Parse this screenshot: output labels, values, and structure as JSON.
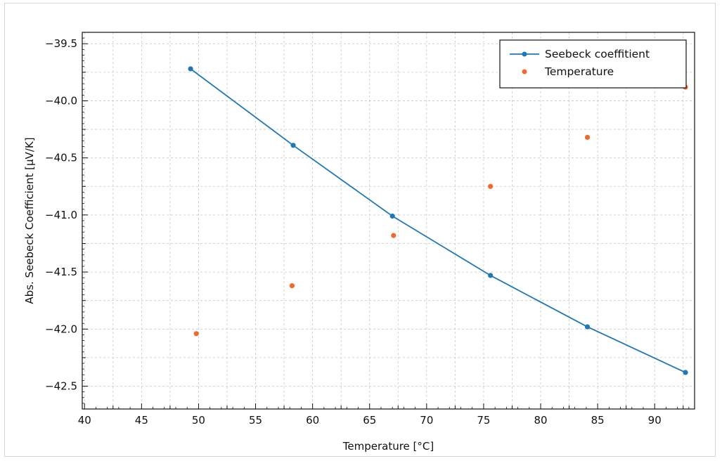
{
  "chart_data": {
    "type": "line",
    "xlabel": "Temperature [°C]",
    "ylabel": "Abs. Seebeck Coefficient [µV/K]",
    "xlim": [
      39.8,
      93.5
    ],
    "ylim": [
      -42.7,
      -39.4
    ],
    "x_ticks": [
      40,
      45,
      50,
      55,
      60,
      65,
      70,
      75,
      80,
      85,
      90
    ],
    "x_tick_labels": [
      "40",
      "45",
      "50",
      "55",
      "60",
      "65",
      "70",
      "75",
      "80",
      "85",
      "90"
    ],
    "y_ticks": [
      -39.5,
      -40.0,
      -40.5,
      -41.0,
      -41.5,
      -42.0,
      -42.5
    ],
    "y_tick_labels": [
      "−39.5",
      "−40.0",
      "−40.5",
      "−41.0",
      "−41.5",
      "−42.0",
      "−42.5"
    ],
    "grid": true,
    "legend_position": "top-right",
    "series": [
      {
        "name": "Seebeck coeffitient",
        "style": "line-markers",
        "color": "#1f77b4",
        "x": [
          49.3,
          58.3,
          67.0,
          75.6,
          84.1,
          92.7
        ],
        "y": [
          -39.72,
          -40.39,
          -41.01,
          -41.53,
          -41.98,
          -42.38
        ]
      },
      {
        "name": "Temperature",
        "style": "markers",
        "color": "#ef6a2e",
        "x": [
          49.8,
          58.2,
          67.1,
          75.6,
          84.1,
          92.7
        ],
        "y": [
          -42.04,
          -41.62,
          -41.18,
          -40.75,
          -40.32,
          -39.88
        ]
      }
    ]
  }
}
